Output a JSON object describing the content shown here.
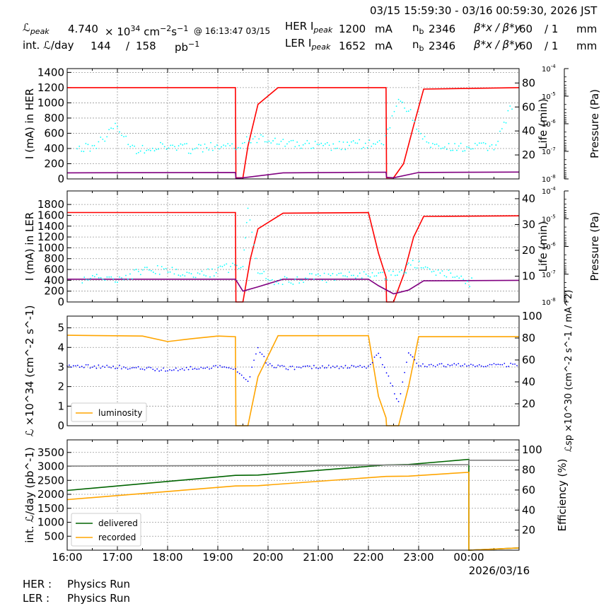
{
  "header": {
    "time_range": "03/15 15:59:30 - 03/16 00:59:30, 2026 JST",
    "lpeak_label": "ℒ",
    "lpeak_sub": "peak",
    "lpeak_mant": "4.740",
    "lpeak_times": "× 10",
    "lpeak_exp": "34",
    "lpeak_unit_a": "cm",
    "lpeak_unit_e1": "−2",
    "lpeak_unit_b": "s",
    "lpeak_unit_e2": "−1",
    "lpeak_time": "@ 16:13:47 03/15",
    "intl_label": "int. ℒ/day",
    "intl_day": "144",
    "slash": "/",
    "intl_total": "158",
    "intl_unit": "pb",
    "intl_unit_exp": "−1",
    "her_label": "HER I",
    "her_sub": "peak",
    "her_ipeak": "1200",
    "ler_label": "LER I",
    "ler_sub": "peak",
    "ler_ipeak": "1652",
    "ma": "mA",
    "nb_label": "n",
    "nb_sub": "b",
    "her_nb": "2346",
    "ler_nb": "2346",
    "beta_label": "β*x / β*y",
    "her_betax": "60",
    "her_betay": "/ 1",
    "ler_betax": "60",
    "ler_betay": "/ 1",
    "mm": "mm"
  },
  "footer": {
    "her_status_label": "HER :",
    "her_status": "Physics Run",
    "ler_status_label": "LER :",
    "ler_status": "Physics Run"
  },
  "chart_data": [
    {
      "type": "line",
      "panel": "HER",
      "x_ticks": [
        "16:00",
        "17:00",
        "18:00",
        "19:00",
        "20:00",
        "21:00",
        "22:00",
        "23:00",
        "00:00"
      ],
      "x_date_label": "2026/03/16",
      "x_range": [
        "16:00",
        "01:00"
      ],
      "ylabel": "I (mA) in HER",
      "ylim": [
        0,
        1450
      ],
      "y_ticks": [
        0,
        200,
        400,
        600,
        800,
        1000,
        1200,
        1400
      ],
      "y2label": "Life (min)",
      "y2lim": [
        0,
        92
      ],
      "y2_ticks": [
        20,
        40,
        60,
        80
      ],
      "y3label": "Pressure (Pa)",
      "y3_ticks": [
        "10^-4",
        "10^-5",
        "10^-6",
        "10^-7",
        "10^-8"
      ],
      "grid": true,
      "series": [
        {
          "color": "#ff0000",
          "x": [
            16.0,
            19.35,
            19.36,
            19.5,
            19.6,
            19.8,
            20.2,
            22.0,
            22.35,
            22.36,
            22.5,
            22.7,
            22.9,
            23.1,
            25.0
          ],
          "values": [
            1200,
            1200,
            15,
            15,
            430,
            980,
            1200,
            1200,
            1200,
            15,
            15,
            200,
            700,
            1180,
            1200
          ]
        },
        {
          "color": "#800080",
          "x": [
            16.0,
            19.35,
            19.36,
            19.5,
            20.3,
            22.35,
            22.36,
            22.5,
            23.0,
            25.0
          ],
          "values": [
            80,
            85,
            10,
            15,
            80,
            88,
            20,
            15,
            85,
            90
          ]
        },
        {
          "color": "#00ffff",
          "x": [
            16.2,
            16.5,
            17.0,
            17.3,
            17.7,
            18.1,
            18.5,
            18.9,
            19.2,
            19.7,
            19.9,
            20.3,
            20.7,
            21.1,
            21.5,
            21.9,
            22.3,
            22.6,
            22.8,
            23.2,
            23.6,
            24.0,
            24.5,
            24.9
          ],
          "values": [
            400,
            410,
            700,
            390,
            410,
            430,
            390,
            420,
            400,
            520,
            560,
            480,
            450,
            420,
            430,
            460,
            440,
            1060,
            900,
            420,
            400,
            420,
            420,
            1030
          ]
        }
      ]
    },
    {
      "type": "line",
      "panel": "LER",
      "ylabel": "I (mA) in LER",
      "ylim": [
        0,
        2050
      ],
      "y_ticks": [
        0,
        200,
        400,
        600,
        800,
        1000,
        1200,
        1400,
        1600,
        1800
      ],
      "y2label": "Life (min)",
      "y2lim": [
        0,
        43
      ],
      "y2_ticks": [
        10,
        20,
        30,
        40
      ],
      "y3label": "Pressure (Pa)",
      "y3_ticks": [
        "10^-4",
        "10^-5",
        "10^-6",
        "10^-7",
        "10^-8"
      ],
      "grid": true,
      "series": [
        {
          "color": "#ff0000",
          "x": [
            16.0,
            19.35,
            19.36,
            19.5,
            19.65,
            19.8,
            20.3,
            22.0,
            22.2,
            22.35,
            22.36,
            22.5,
            22.7,
            22.9,
            23.1,
            25.0
          ],
          "values": [
            1652,
            1652,
            0,
            0,
            800,
            1350,
            1640,
            1650,
            900,
            460,
            0,
            0,
            500,
            1200,
            1580,
            1590
          ]
        },
        {
          "color": "#800080",
          "x": [
            16.0,
            19.35,
            19.5,
            19.8,
            20.3,
            22.0,
            22.2,
            22.5,
            22.8,
            23.1,
            25.0
          ],
          "values": [
            420,
            420,
            200,
            280,
            420,
            420,
            300,
            150,
            220,
            390,
            400
          ]
        },
        {
          "color": "#00ffff",
          "x": [
            16.3,
            17.0,
            17.8,
            18.3,
            18.6,
            19.5,
            19.6,
            19.8,
            20.0,
            22.7,
            22.8,
            24.1
          ],
          "values": [
            400,
            450,
            600,
            520,
            480,
            700,
            1750,
            600,
            400,
            500,
            750,
            340
          ]
        }
      ]
    },
    {
      "type": "line",
      "panel": "Luminosity",
      "ylabel": "ℒ ×10^34 (cm^-2 s^-1)",
      "ylim": [
        0,
        5.6
      ],
      "y_ticks": [
        0,
        1,
        2,
        3,
        4,
        5
      ],
      "y2label": "ℒsp ×10^30 (cm^-2 s^-1 / mA^2)",
      "y2lim": [
        0,
        100
      ],
      "y2_ticks": [
        20,
        40,
        60,
        80,
        100
      ],
      "legend": {
        "position": "lower-left",
        "entries": [
          "luminosity"
        ]
      },
      "grid": true,
      "series": [
        {
          "name": "luminosity",
          "color": "#ffa500",
          "x": [
            16.0,
            17.5,
            18.0,
            18.5,
            19.0,
            19.35,
            19.36,
            19.6,
            19.8,
            20.2,
            21.0,
            22.0,
            22.2,
            22.35,
            22.36,
            22.6,
            22.8,
            23.0,
            25.0
          ],
          "values": [
            4.62,
            4.58,
            4.3,
            4.45,
            4.58,
            4.55,
            0,
            0,
            2.5,
            4.6,
            4.6,
            4.6,
            1.5,
            0.4,
            0,
            0,
            2.0,
            4.55,
            4.55
          ]
        },
        {
          "color": "#0000ff",
          "x": [
            16.0,
            17.0,
            18.0,
            18.5,
            19.0,
            19.35,
            19.6,
            19.8,
            20.0,
            20.4,
            21.0,
            22.0,
            22.2,
            22.6,
            22.8,
            23.0,
            25.0
          ],
          "values": [
            3.05,
            3.0,
            2.85,
            2.95,
            3.0,
            2.95,
            2.2,
            4.0,
            3.1,
            2.95,
            3.0,
            3.0,
            3.7,
            1.2,
            3.8,
            3.1,
            3.1
          ]
        }
      ]
    },
    {
      "type": "line",
      "panel": "Integrated",
      "ylabel": "int. ℒ/day (pb^-1)",
      "ylim": [
        0,
        3950
      ],
      "y_ticks": [
        500,
        1000,
        1500,
        2000,
        2500,
        3000,
        3500
      ],
      "y2label": "Efficiency (%)",
      "y2lim": [
        0,
        110
      ],
      "y2_ticks": [
        20,
        40,
        60,
        80,
        100
      ],
      "legend": {
        "position": "lower-left",
        "entries": [
          "delivered",
          "recorded"
        ]
      },
      "grid": true,
      "series": [
        {
          "name": "delivered",
          "color": "#006400",
          "x": [
            16.0,
            19.35,
            19.8,
            22.35,
            22.8,
            24.0,
            24.0,
            25.0
          ],
          "values": [
            2140,
            2680,
            2690,
            3050,
            3070,
            3250,
            0,
            80
          ]
        },
        {
          "name": "recorded",
          "color": "#ffa500",
          "x": [
            16.0,
            19.35,
            19.8,
            22.35,
            22.8,
            24.0,
            24.0,
            25.0
          ],
          "values": [
            1810,
            2300,
            2310,
            2640,
            2650,
            2790,
            0,
            80
          ]
        },
        {
          "color": "#808080",
          "x": [
            16.0,
            24.0,
            24.0,
            25.0
          ],
          "values": [
            3010,
            3060,
            3220,
            3220
          ]
        }
      ]
    }
  ]
}
